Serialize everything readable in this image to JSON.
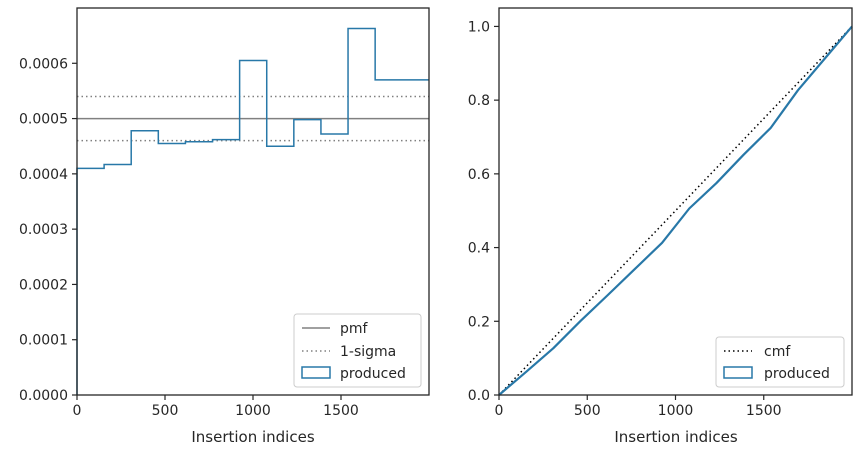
{
  "chart_data": [
    {
      "type": "line",
      "xlabel": "Insertion indices",
      "ylabel": "",
      "xlim": [
        0,
        2000
      ],
      "ylim": [
        0,
        0.0007
      ],
      "xticks": [
        "0",
        "500",
        "1000",
        "1500"
      ],
      "xtick_values": [
        0,
        500,
        1000,
        1500
      ],
      "yticks": [
        "0.0000",
        "0.0001",
        "0.0002",
        "0.0003",
        "0.0004",
        "0.0005",
        "0.0006"
      ],
      "ytick_values": [
        0,
        0.0001,
        0.0002,
        0.0003,
        0.0004,
        0.0005,
        0.0006
      ],
      "grid": false,
      "legend_position": "lower-right",
      "legend": [
        "pmf",
        "1-sigma",
        "produced"
      ],
      "pmf": 0.0005,
      "sigma_band": [
        0.00046,
        0.00054
      ],
      "series": [
        {
          "name": "produced",
          "kind": "step-histogram",
          "bin_edges": [
            0,
            154,
            308,
            462,
            616,
            770,
            924,
            1078,
            1232,
            1386,
            1540,
            1694,
            1848,
            2000
          ],
          "values": [
            0.00041,
            0.000417,
            0.000478,
            0.000455,
            0.000458,
            0.000462,
            0.000605,
            0.00045,
            0.000498,
            0.000472,
            0.000663,
            0.00057,
            0.00057
          ]
        }
      ],
      "colors": {
        "pmf": "#808080",
        "sigma": "#808080",
        "produced": "#2878a8"
      }
    },
    {
      "type": "line",
      "xlabel": "Insertion indices",
      "ylabel": "",
      "xlim": [
        0,
        2000
      ],
      "ylim": [
        0,
        1.05
      ],
      "xticks": [
        "0",
        "500",
        "1000",
        "1500"
      ],
      "xtick_values": [
        0,
        500,
        1000,
        1500
      ],
      "yticks": [
        "0.0",
        "0.2",
        "0.4",
        "0.6",
        "0.8",
        "1.0"
      ],
      "ytick_values": [
        0,
        0.2,
        0.4,
        0.6,
        0.8,
        1.0
      ],
      "grid": false,
      "legend_position": "lower-right",
      "legend": [
        "cmf",
        "produced"
      ],
      "series": [
        {
          "name": "cmf",
          "x": [
            0,
            2000
          ],
          "y": [
            0,
            1.0
          ]
        },
        {
          "name": "produced",
          "x": [
            0,
            154,
            308,
            462,
            616,
            770,
            924,
            1078,
            1232,
            1386,
            1540,
            1694,
            1848,
            2000
          ],
          "y": [
            0,
            0.063,
            0.127,
            0.201,
            0.271,
            0.342,
            0.413,
            0.506,
            0.575,
            0.652,
            0.725,
            0.827,
            0.914,
            1.0
          ]
        }
      ],
      "colors": {
        "cmf": "#000000",
        "produced": "#2878a8"
      }
    }
  ]
}
